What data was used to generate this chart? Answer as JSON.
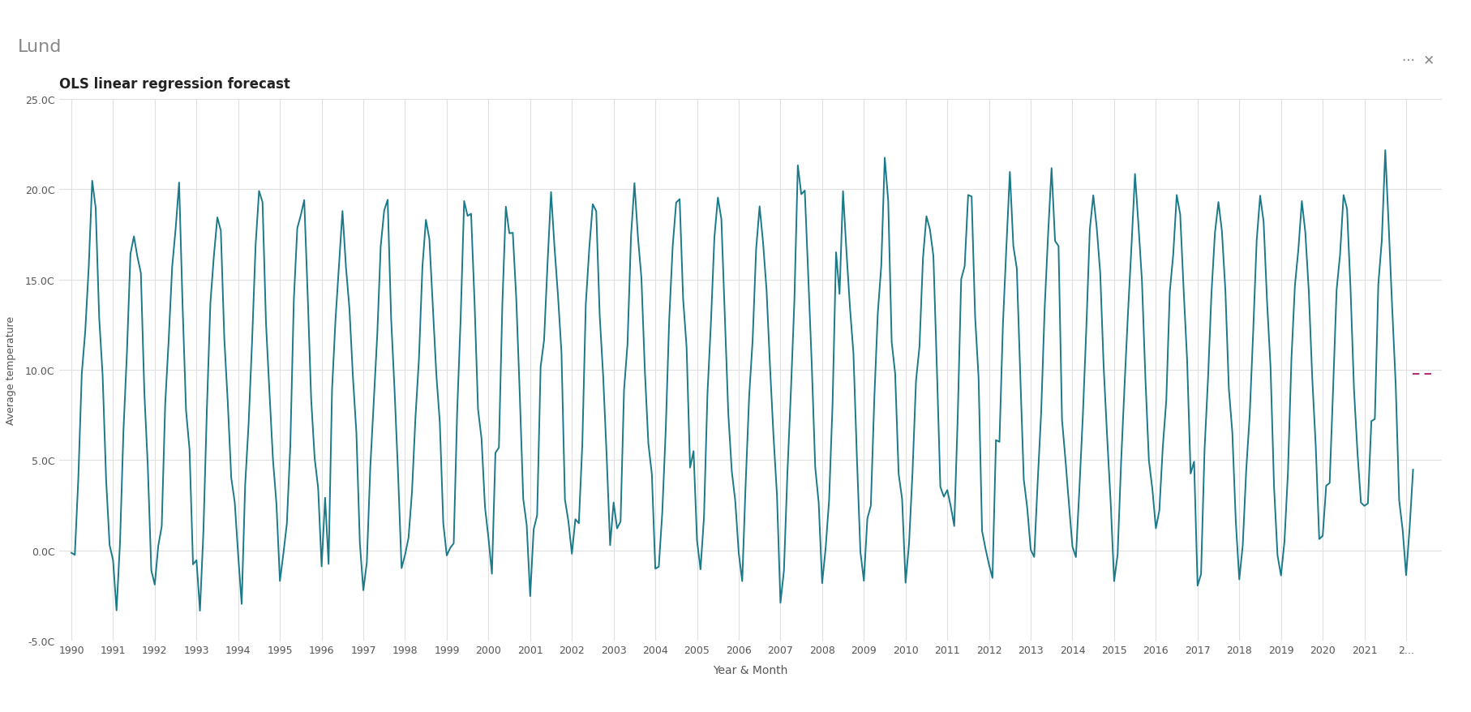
{
  "title": "Lund",
  "subtitle": "OLS linear regression forecast",
  "xlabel": "Year & Month",
  "ylabel": "Average temperature",
  "ylim": [
    -5.0,
    25.0
  ],
  "ytick_labels": [
    "-5.0C",
    "0.0C",
    "5.0C",
    "10.0C",
    "15.0C",
    "20.0C",
    "25.0C"
  ],
  "line_color": "#1a7a8a",
  "forecast_color": "#b03070",
  "forecast_value": 9.8,
  "title_bg": "#e8e8e8",
  "title_fontcolor": "#888888",
  "subtitle_fontcolor": "#222222",
  "fig_bg": "#ffffff",
  "axes_bg": "#ffffff",
  "grid_color": "#e0e0e0",
  "tick_label_color": "#555555",
  "axis_label_color": "#555555",
  "start_year": 1990,
  "end_year": 2022,
  "line_width": 1.4
}
